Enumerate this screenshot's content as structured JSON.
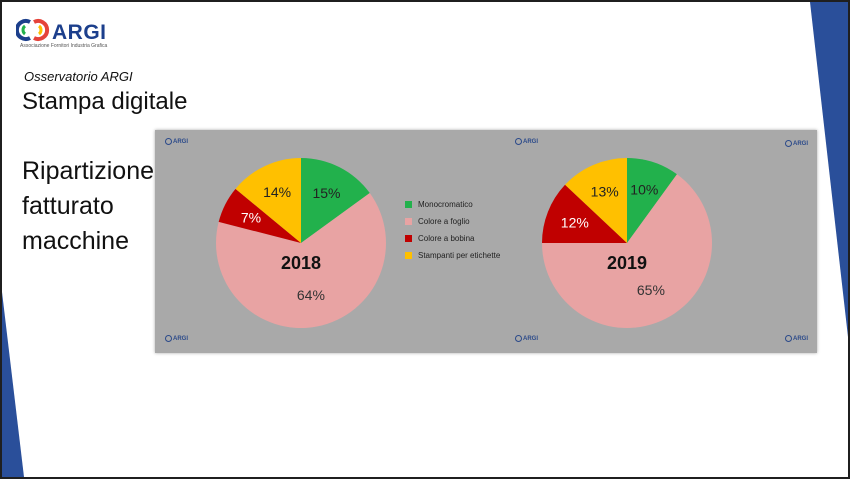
{
  "header": {
    "logo_text": "ARGI",
    "logo_subtitle": "Associazione Fornitori Industria Grafica",
    "subtitle": "Osservatorio ARGI",
    "title": "Stampa digitale"
  },
  "side_title": {
    "line1": "Ripartizione",
    "line2": "fatturato",
    "line3": "macchine"
  },
  "watermark_text": "ARGI",
  "colors": {
    "chart_background": "#a9a9a9",
    "deco_blue": "#2a4f9a"
  },
  "chart_data": [
    {
      "type": "pie",
      "title": "2018",
      "labels": [
        "Monocromatico",
        "Colore a foglio",
        "Colore a bobina",
        "Stampanti per etichette"
      ],
      "values": [
        15,
        64,
        7,
        14
      ],
      "value_labels": [
        "15%",
        "64%",
        "7%",
        "14%"
      ],
      "colors": [
        "#22b14c",
        "#e8a3a3",
        "#c00000",
        "#ffc000"
      ],
      "legend_position": "center"
    },
    {
      "type": "pie",
      "title": "2019",
      "labels": [
        "Monocromatico",
        "Colore a foglio",
        "Colore a bobina",
        "Stampanti per etichette"
      ],
      "values": [
        10,
        65,
        12,
        13
      ],
      "value_labels": [
        "10%",
        "65%",
        "12%",
        "13%"
      ],
      "colors": [
        "#22b14c",
        "#e8a3a3",
        "#c00000",
        "#ffc000"
      ],
      "legend_position": "center"
    }
  ]
}
